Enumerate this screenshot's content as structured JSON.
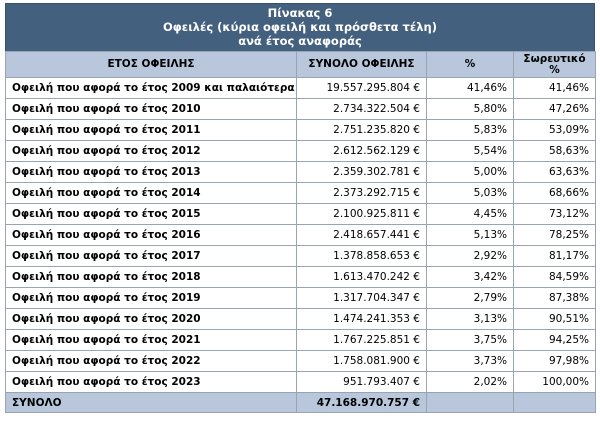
{
  "title": {
    "line1": "Πίνακας 6",
    "line2": "Οφειλές (κύρια οφειλή και πρόσθετα τέλη)",
    "line3": "ανά έτος αναφοράς"
  },
  "columns": {
    "year": "ΕΤΟΣ ΟΦΕΙΛΗΣ",
    "total": "ΣΥΝΟΛΟ ΟΦΕΙΛΗΣ",
    "pct": "%",
    "cum_line1": "Σωρευτικό",
    "cum_line2": "%"
  },
  "rows": [
    {
      "label": "Οφειλή που αφορά το έτος 2009 και παλαιότερα",
      "total": "19.557.295.804 €",
      "pct": "41,46%",
      "cum": "41,46%"
    },
    {
      "label": "Οφειλή που αφορά το έτος 2010",
      "total": "2.734.322.504 €",
      "pct": "5,80%",
      "cum": "47,26%"
    },
    {
      "label": "Οφειλή που αφορά το έτος 2011",
      "total": "2.751.235.820 €",
      "pct": "5,83%",
      "cum": "53,09%"
    },
    {
      "label": "Οφειλή που αφορά το έτος 2012",
      "total": "2.612.562.129 €",
      "pct": "5,54%",
      "cum": "58,63%"
    },
    {
      "label": "Οφειλή που αφορά το έτος 2013",
      "total": "2.359.302.781 €",
      "pct": "5,00%",
      "cum": "63,63%"
    },
    {
      "label": "Οφειλή που αφορά το έτος 2014",
      "total": "2.373.292.715 €",
      "pct": "5,03%",
      "cum": "68,66%"
    },
    {
      "label": "Οφειλή που αφορά το έτος 2015",
      "total": "2.100.925.811 €",
      "pct": "4,45%",
      "cum": "73,12%"
    },
    {
      "label": "Οφειλή που αφορά το έτος 2016",
      "total": "2.418.657.441 €",
      "pct": "5,13%",
      "cum": "78,25%"
    },
    {
      "label": "Οφειλή που αφορά το έτος 2017",
      "total": "1.378.858.653 €",
      "pct": "2,92%",
      "cum": "81,17%"
    },
    {
      "label": "Οφειλή που αφορά το έτος 2018",
      "total": "1.613.470.242 €",
      "pct": "3,42%",
      "cum": "84,59%"
    },
    {
      "label": "Οφειλή που αφορά το έτος 2019",
      "total": "1.317.704.347 €",
      "pct": "2,79%",
      "cum": "87,38%"
    },
    {
      "label": "Οφειλή που αφορά το έτος 2020",
      "total": "1.474.241.353 €",
      "pct": "3,13%",
      "cum": "90,51%"
    },
    {
      "label": "Οφειλή που αφορά το έτος 2021",
      "total": "1.767.225.851 €",
      "pct": "3,75%",
      "cum": "94,25%"
    },
    {
      "label": "Οφειλή που αφορά το έτος 2022",
      "total": "1.758.081.900 €",
      "pct": "3,73%",
      "cum": "97,98%"
    },
    {
      "label": "Οφειλή που αφορά το έτος 2023",
      "total": "951.793.407 €",
      "pct": "2,02%",
      "cum": "100,00%"
    }
  ],
  "total_row": {
    "label": "ΣΥΝΟΛΟ",
    "total": "47.168.970.757 €"
  }
}
